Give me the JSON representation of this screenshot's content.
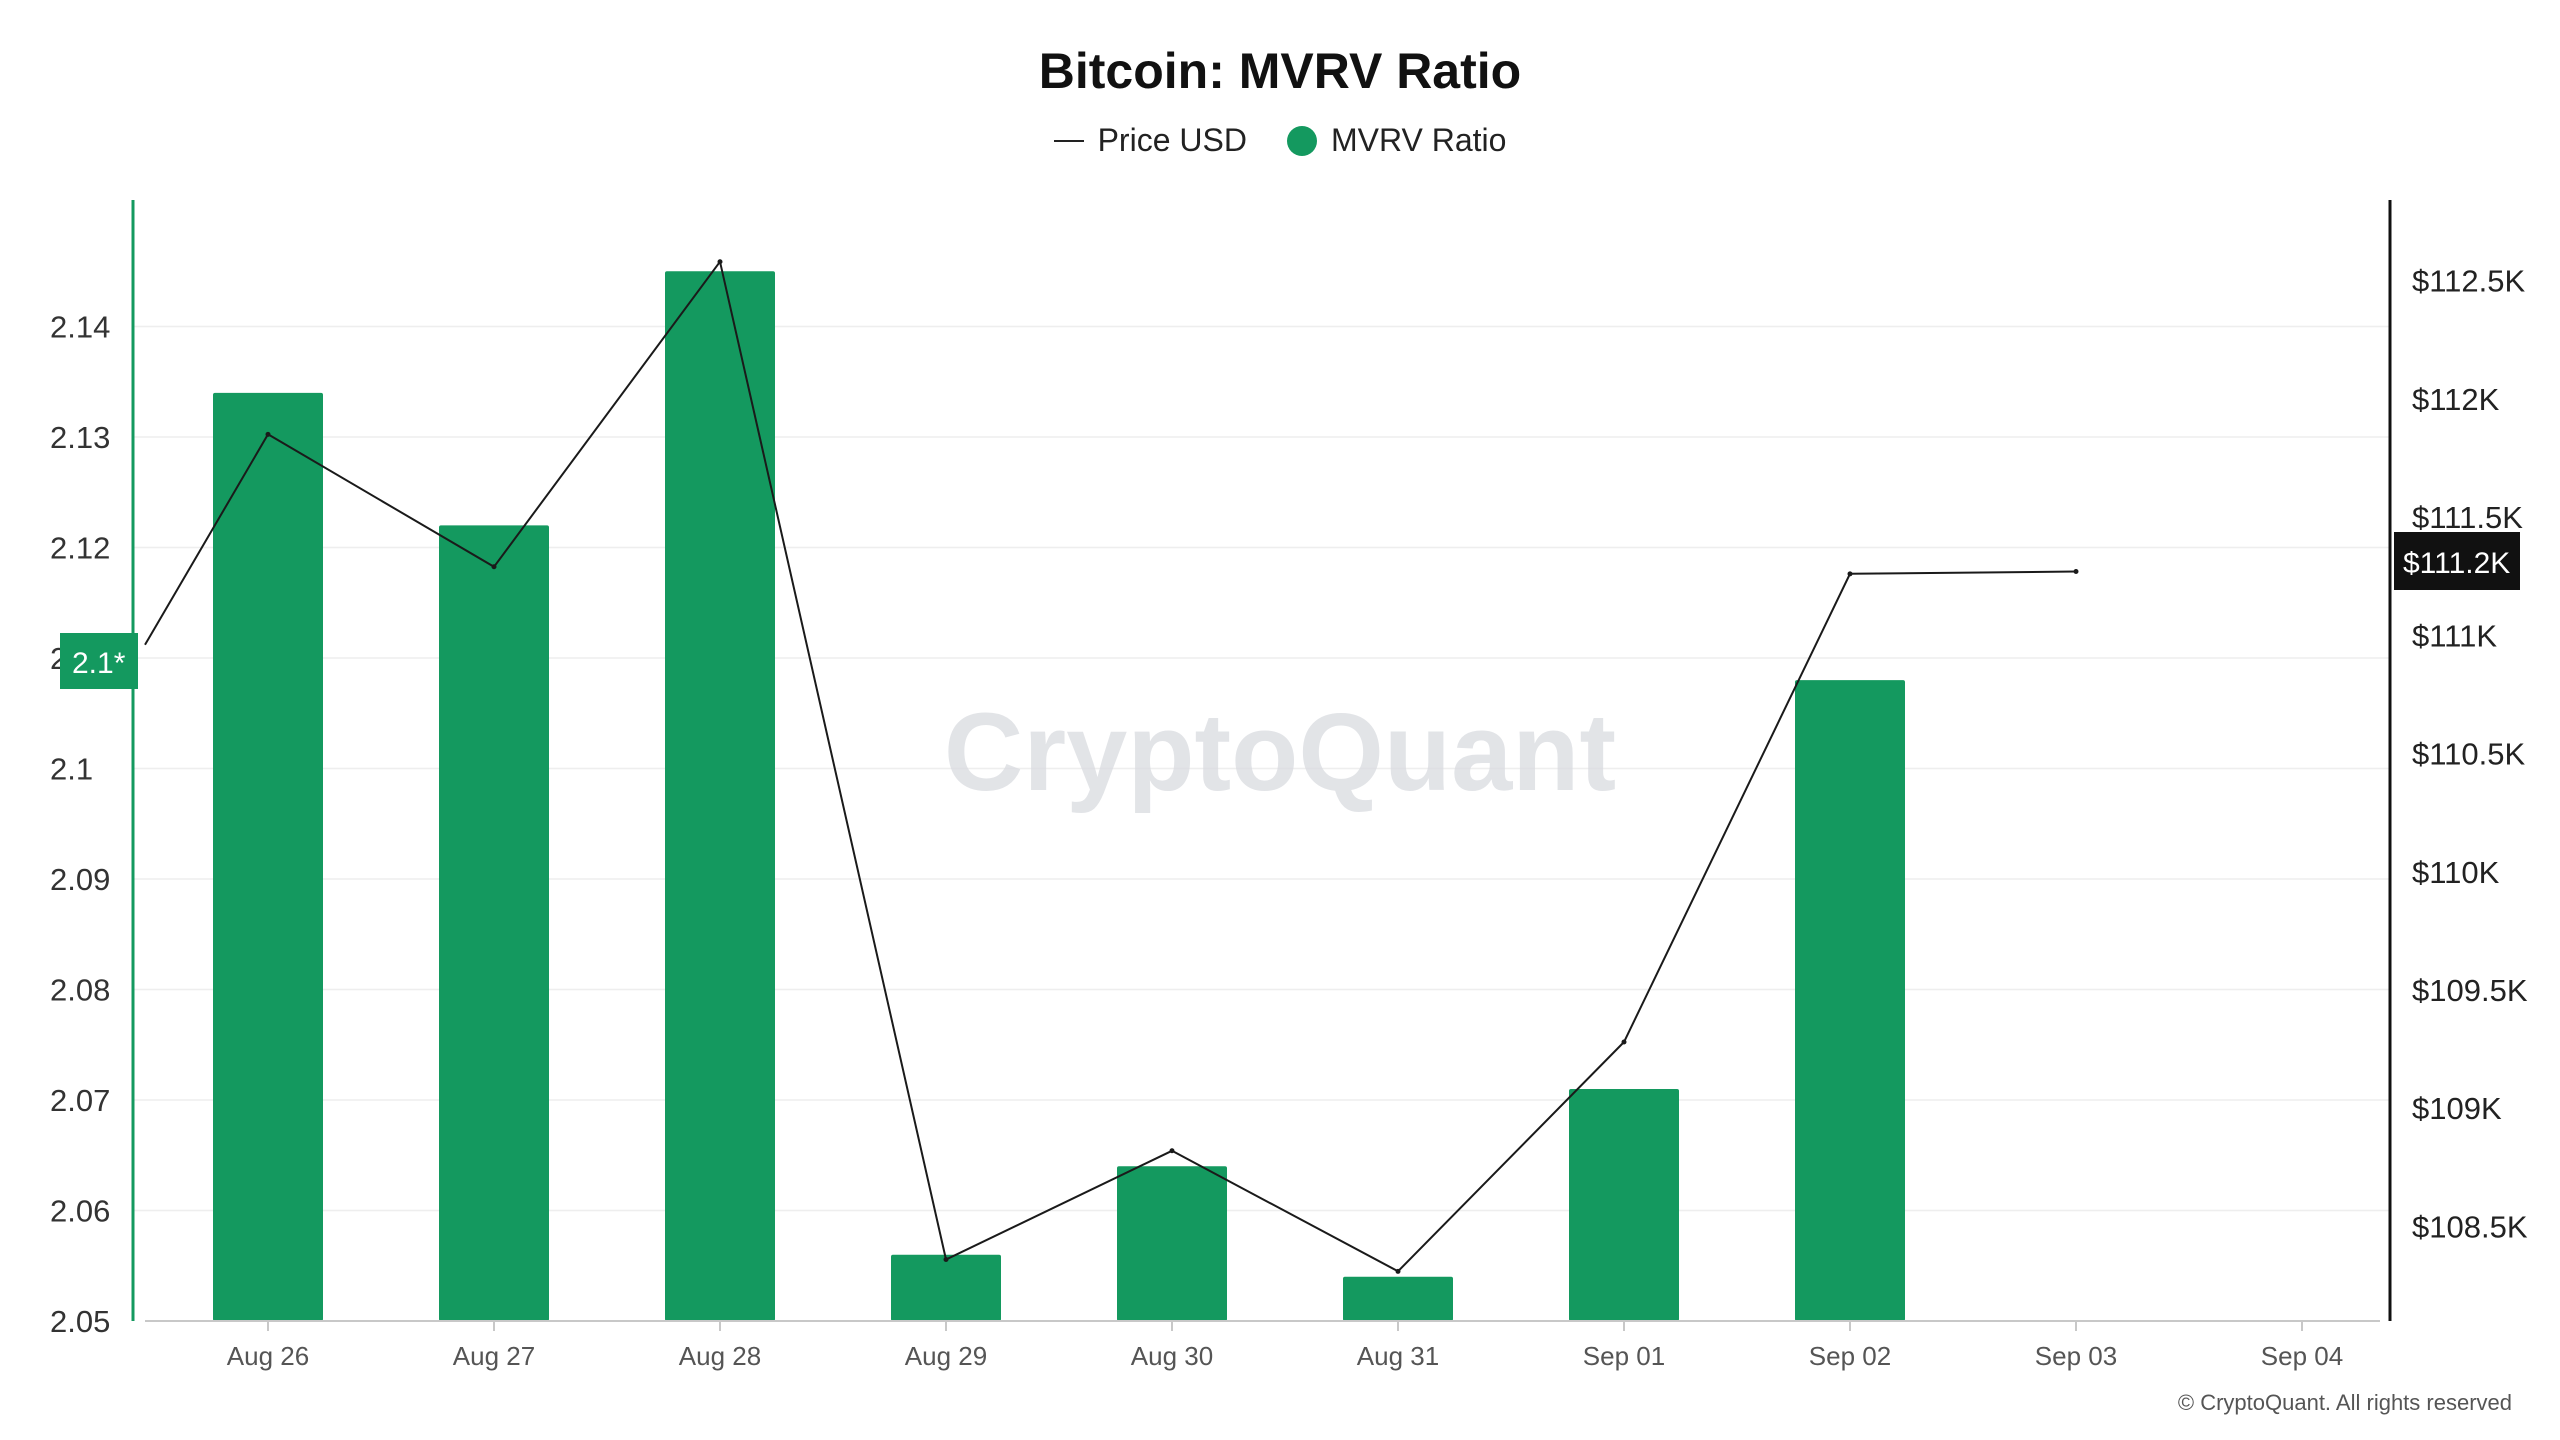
{
  "colors": {
    "bar": "#14995f",
    "line": "#1a1a1a",
    "axis_left": "#14995f",
    "axis_right": "#111111",
    "grid": "#eeeeee"
  },
  "watermark": "CryptoQuant",
  "credit": "© CryptoQuant. All rights reserved",
  "current_markers": {
    "left": "2.1*",
    "right": "$111.2K"
  },
  "chart_data": {
    "type": "bar",
    "title": "Bitcoin: MVRV Ratio",
    "legend": [
      "Price USD",
      "MVRV Ratio"
    ],
    "legend_placement": "top-center",
    "categories": [
      "Aug 26",
      "Aug 27",
      "Aug 28",
      "Aug 29",
      "Aug 30",
      "Aug 31",
      "Sep 01",
      "Sep 02",
      "Sep 03",
      "Sep 04"
    ],
    "series": [
      {
        "name": "MVRV Ratio",
        "type": "bar",
        "axis": "left",
        "values": [
          2.134,
          2.122,
          2.145,
          2.056,
          2.064,
          2.054,
          2.071,
          2.108,
          null,
          null
        ]
      },
      {
        "name": "Price USD",
        "type": "line",
        "axis": "right",
        "values": [
          111850,
          111290,
          112580,
          108360,
          108820,
          108310,
          109280,
          111260,
          111270,
          null
        ],
        "lead_in_value": 110960
      }
    ],
    "y_left": {
      "ylim": [
        2.05,
        2.151
      ],
      "ticks": [
        2.05,
        2.06,
        2.07,
        2.08,
        2.09,
        2.1,
        2.11,
        2.12,
        2.13,
        2.14
      ],
      "tick_labels": [
        "2.05",
        "2.06",
        "2.07",
        "2.08",
        "2.09",
        "2.1",
        "2.11",
        "2.12",
        "2.13",
        "2.14"
      ]
    },
    "y_right": {
      "ylim": [
        108100,
        112820
      ],
      "ticks": [
        108500,
        109000,
        109500,
        110000,
        110500,
        111000,
        111500,
        112000,
        112500
      ],
      "tick_labels": [
        "$108.5K",
        "$109K",
        "$109.5K",
        "$110K",
        "$110.5K",
        "$111K",
        "$111.5K",
        "$112K",
        "$112.5K"
      ]
    },
    "grid": true
  }
}
